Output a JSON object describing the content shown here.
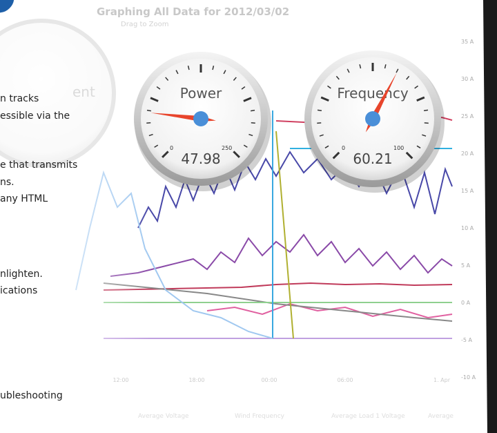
{
  "header": {
    "title": "Graphing All Data for 2012/03/02",
    "subtitle": "Drag to Zoom"
  },
  "faded_gauge_label": "ent",
  "gauges": [
    {
      "label": "Power",
      "value": 47.98,
      "min": 0,
      "max": 250
    },
    {
      "label": "Frequency",
      "value": 60.21,
      "min": 0,
      "max": 100
    }
  ],
  "axis": {
    "yticks": [
      "35 A",
      "30 A",
      "25 A",
      "20 A",
      "15 A",
      "10 A",
      "5 A",
      "0 A",
      "-5 A",
      "-10 A"
    ],
    "xticks": [
      "12:00",
      "18:00",
      "00:00",
      "06:00",
      "1. Apr"
    ]
  },
  "body_lines": [
    "n tracks",
    "essible via the",
    "e that transmits",
    "ns.",
    "any HTML",
    "nlighten.",
    "ications",
    "ubleshooting"
  ],
  "legend": [
    "Average Voltage",
    "Wind Frequency",
    "Average Load 1 Voltage",
    "Average"
  ]
}
